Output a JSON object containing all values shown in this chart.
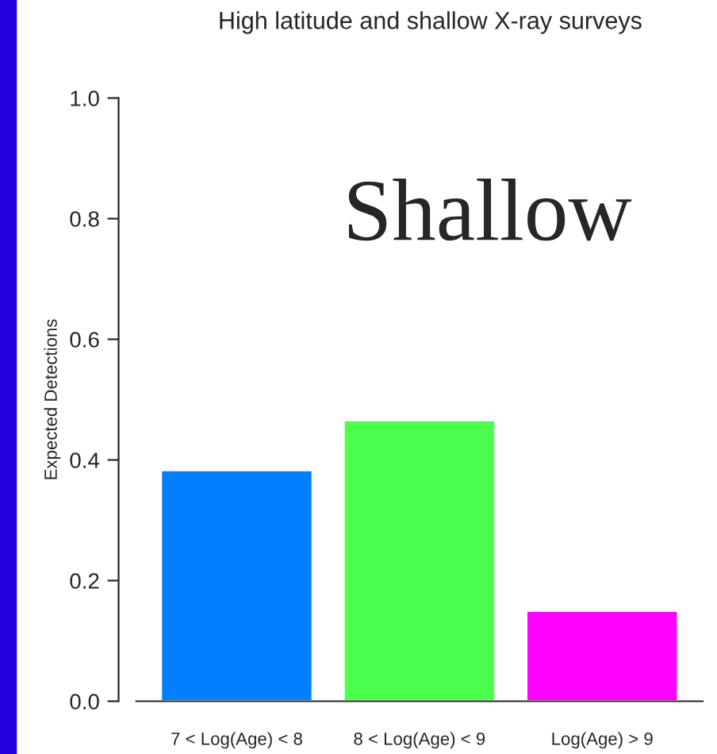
{
  "chart_data": {
    "type": "bar",
    "title": "High latitude and shallow X-ray surveys",
    "ylabel": "Expected Detections",
    "categories": [
      "7 < Log(Age) < 8",
      "8 < Log(Age) < 9",
      "Log(Age) > 9"
    ],
    "values": [
      0.383,
      0.466,
      0.15
    ],
    "colors": [
      "#0080ff",
      "#4dff4d",
      "#ff00ff"
    ],
    "ylim": [
      0,
      1
    ],
    "yticks": [
      {
        "value": 0,
        "label": "0.0"
      },
      0.2,
      0.4,
      0.6,
      0.8,
      {
        "value": 1,
        "label": "1.0"
      }
    ],
    "annotations": [
      "Shallow"
    ],
    "grid": false,
    "legend": false
  }
}
